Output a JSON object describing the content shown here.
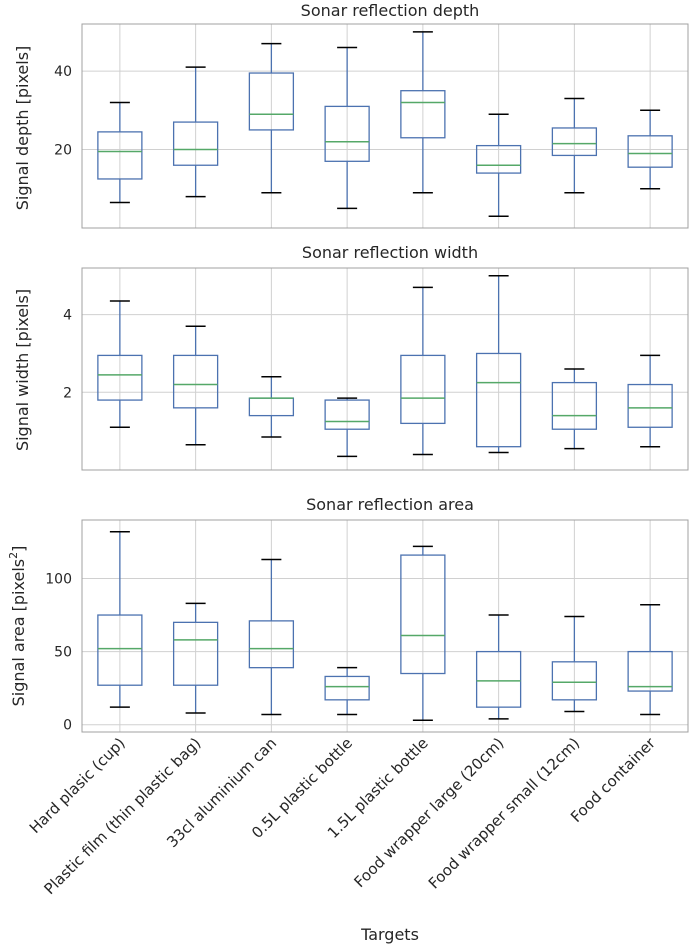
{
  "colors": {
    "box": "#4c72b0",
    "median": "#55a868",
    "whisker_cap": "#000000",
    "grid": "#d0d0d0",
    "frame": "#a0a0a0",
    "text": "#262626"
  },
  "chart_data": [
    {
      "type": "box",
      "title": "Sonar reflection depth",
      "xlabel": "",
      "ylabel": "Signal depth [pixels]",
      "ylim": [
        0,
        52
      ],
      "yticks": [
        20,
        40
      ],
      "ytick_labels": [
        "20",
        "40"
      ],
      "categories": [
        "Hard plasic (cup)",
        "Plastic film (thin plastic bag)",
        "33cl aluminium can",
        "0.5L plastic bottle",
        "1.5L plastic bottle",
        "Food wrapper large (20cm)",
        "Food wrapper small (12cm)",
        "Food container"
      ],
      "boxes": [
        {
          "whislo": 6.5,
          "q1": 12.5,
          "med": 19.5,
          "q3": 24.5,
          "whishi": 32
        },
        {
          "whislo": 8,
          "q1": 16,
          "med": 20,
          "q3": 27,
          "whishi": 41
        },
        {
          "whislo": 9,
          "q1": 25,
          "med": 29,
          "q3": 39.5,
          "whishi": 47
        },
        {
          "whislo": 5,
          "q1": 17,
          "med": 22,
          "q3": 31,
          "whishi": 46
        },
        {
          "whislo": 9,
          "q1": 23,
          "med": 32,
          "q3": 35,
          "whishi": 50
        },
        {
          "whislo": 3,
          "q1": 14,
          "med": 16,
          "q3": 21,
          "whishi": 29
        },
        {
          "whislo": 9,
          "q1": 18.5,
          "med": 21.5,
          "q3": 25.5,
          "whishi": 33
        },
        {
          "whislo": 10,
          "q1": 15.5,
          "med": 19,
          "q3": 23.5,
          "whishi": 30
        }
      ]
    },
    {
      "type": "box",
      "title": "Sonar reflection width",
      "xlabel": "",
      "ylabel": "Signal width [pixels]",
      "ylim": [
        0,
        5.2
      ],
      "yticks": [
        2,
        4
      ],
      "ytick_labels": [
        "2",
        "4"
      ],
      "categories": [
        "Hard plasic (cup)",
        "Plastic film (thin plastic bag)",
        "33cl aluminium can",
        "0.5L plastic bottle",
        "1.5L plastic bottle",
        "Food wrapper large (20cm)",
        "Food wrapper small (12cm)",
        "Food container"
      ],
      "boxes": [
        {
          "whislo": 1.1,
          "q1": 1.8,
          "med": 2.45,
          "q3": 2.95,
          "whishi": 4.35
        },
        {
          "whislo": 0.65,
          "q1": 1.6,
          "med": 2.2,
          "q3": 2.95,
          "whishi": 3.7
        },
        {
          "whislo": 0.85,
          "q1": 1.4,
          "med": 1.85,
          "q3": 1.85,
          "whishi": 2.4
        },
        {
          "whislo": 0.35,
          "q1": 1.05,
          "med": 1.25,
          "q3": 1.8,
          "whishi": 1.85
        },
        {
          "whislo": 0.4,
          "q1": 1.2,
          "med": 1.85,
          "q3": 2.95,
          "whishi": 4.7
        },
        {
          "whislo": 0.45,
          "q1": 0.6,
          "med": 2.25,
          "q3": 3.0,
          "whishi": 5.0
        },
        {
          "whislo": 0.55,
          "q1": 1.05,
          "med": 1.4,
          "q3": 2.25,
          "whishi": 2.6
        },
        {
          "whislo": 0.6,
          "q1": 1.1,
          "med": 1.6,
          "q3": 2.2,
          "whishi": 2.95
        }
      ]
    },
    {
      "type": "box",
      "title": "Sonar reflection area",
      "xlabel": "Targets",
      "ylabel_main": "Signal area [pixels",
      "ylabel_sup": "2",
      "ylabel_end": "]",
      "ylim": [
        -5,
        140
      ],
      "yticks": [
        0,
        50,
        100
      ],
      "ytick_labels": [
        "0",
        "50",
        "100"
      ],
      "categories": [
        "Hard plasic (cup)",
        "Plastic film (thin plastic bag)",
        "33cl aluminium can",
        "0.5L plastic bottle",
        "1.5L plastic bottle",
        "Food wrapper large (20cm)",
        "Food wrapper small (12cm)",
        "Food container"
      ],
      "boxes": [
        {
          "whislo": 12,
          "q1": 27,
          "med": 52,
          "q3": 75,
          "whishi": 132
        },
        {
          "whislo": 8,
          "q1": 27,
          "med": 58,
          "q3": 70,
          "whishi": 83
        },
        {
          "whislo": 7,
          "q1": 39,
          "med": 52,
          "q3": 71,
          "whishi": 113
        },
        {
          "whislo": 7,
          "q1": 17,
          "med": 26,
          "q3": 33,
          "whishi": 39
        },
        {
          "whislo": 3,
          "q1": 35,
          "med": 61,
          "q3": 116,
          "whishi": 122
        },
        {
          "whislo": 4,
          "q1": 12,
          "med": 30,
          "q3": 50,
          "whishi": 75
        },
        {
          "whislo": 9,
          "q1": 17,
          "med": 29,
          "q3": 43,
          "whishi": 74
        },
        {
          "whislo": 7,
          "q1": 23,
          "med": 26,
          "q3": 50,
          "whishi": 82
        }
      ]
    }
  ]
}
